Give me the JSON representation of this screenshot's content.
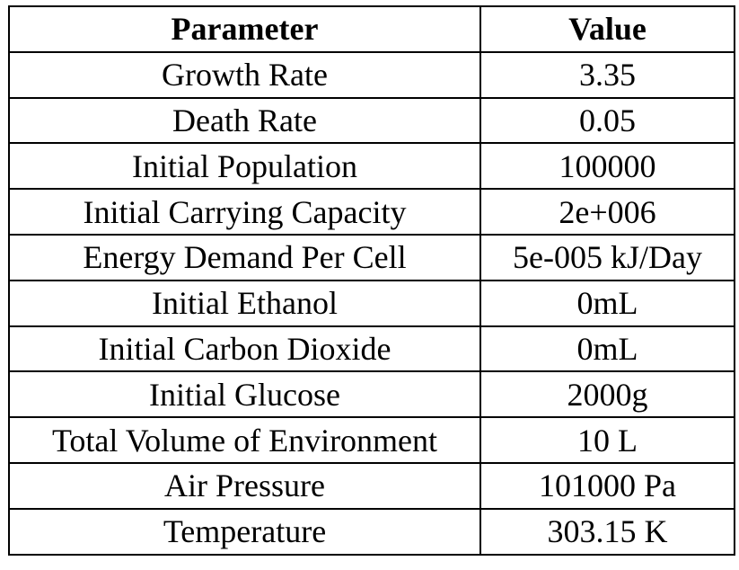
{
  "table": {
    "headers": [
      "Parameter",
      "Value"
    ],
    "rows": [
      [
        "Growth Rate",
        "3.35"
      ],
      [
        "Death Rate",
        "0.05"
      ],
      [
        "Initial Population",
        "100000"
      ],
      [
        "Initial Carrying Capacity",
        "2e+006"
      ],
      [
        "Energy Demand Per Cell",
        "5e-005 kJ/Day"
      ],
      [
        "Initial Ethanol",
        "0mL"
      ],
      [
        "Initial Carbon Dioxide",
        "0mL"
      ],
      [
        "Initial Glucose",
        "2000g"
      ],
      [
        "Total Volume of Environment",
        "10 L"
      ],
      [
        "Air Pressure",
        "101000 Pa"
      ],
      [
        "Temperature",
        "303.15 K"
      ]
    ]
  }
}
